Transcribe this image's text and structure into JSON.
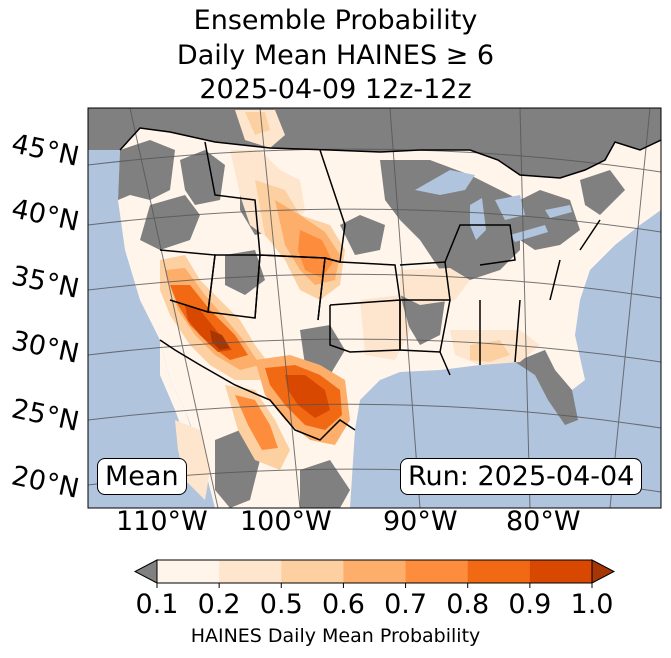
{
  "title": {
    "line1": "Ensemble Probability",
    "line2": "Daily Mean HAINES ≥ 6",
    "line3": "2025-04-09 12z-12z"
  },
  "map": {
    "lat_labels": [
      "45°N",
      "40°N",
      "35°N",
      "30°N",
      "25°N",
      "20°N"
    ],
    "lon_labels": [
      "110°W",
      "100°W",
      "90°W",
      "80°W"
    ],
    "colors": {
      "ocean": "#b0c4de",
      "land_below": "#808080",
      "lakes": "#b0c4de"
    },
    "regions": {
      "great_plains_prob": 0.75,
      "desert_southwest_prob": 0.95,
      "texas_prob": 0.9,
      "southeast_prob": 0.15,
      "great_lakes_prob": 0.05
    }
  },
  "labels": {
    "mean": "Mean",
    "run": "Run: 2025-04-04"
  },
  "colorbar": {
    "ticks": [
      "0.1",
      "0.2",
      "0.5",
      "0.6",
      "0.7",
      "0.8",
      "0.9",
      "1.0"
    ],
    "colors": [
      "#fff5eb",
      "#fee6ce",
      "#fdd0a2",
      "#fdae6b",
      "#fd8d3c",
      "#f16913",
      "#d94801",
      "#a63603"
    ],
    "under_color": "#808080",
    "label": "HAINES Daily Mean Probability"
  }
}
